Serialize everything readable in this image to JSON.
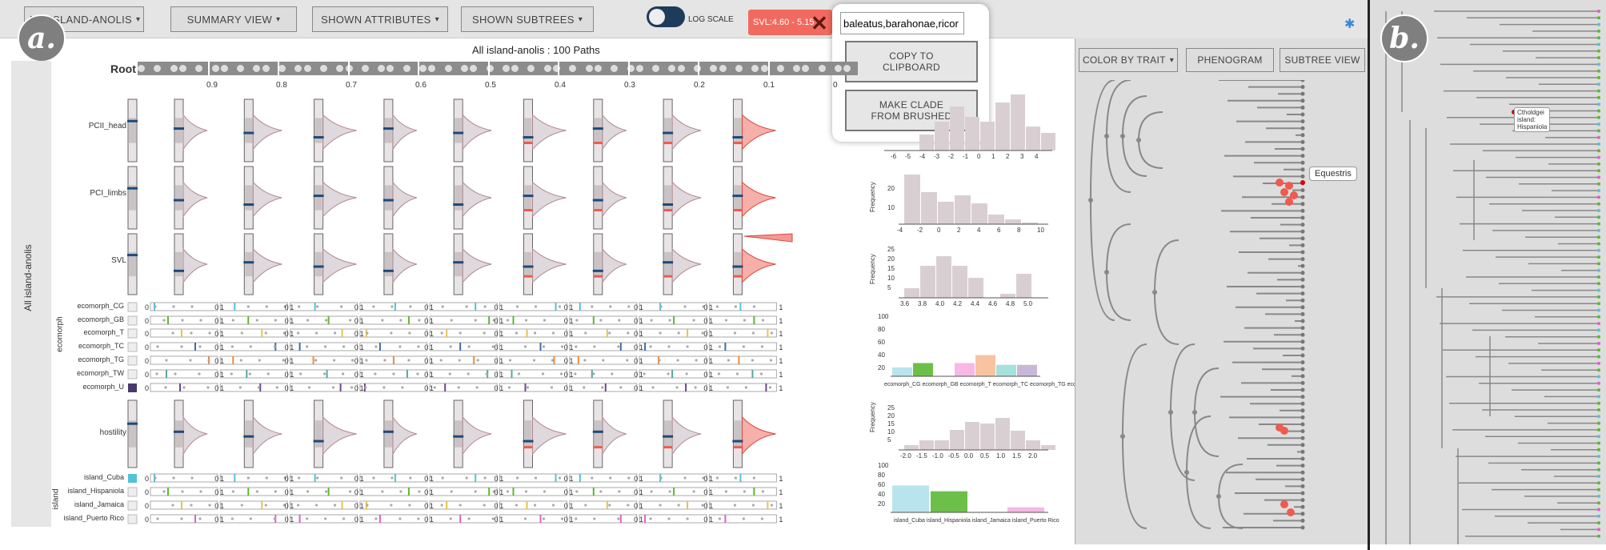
{
  "toolbar": {
    "dataset_label": "ALL ISLAND-ANOLIS",
    "summary_label": "SUMMARY VIEW",
    "attributes_label": "SHOWN ATTRIBUTES",
    "subtrees_label": "SHOWN SUBTREES",
    "log_scale_label": "LOG SCALE",
    "range_chip": "SVL:4.60 - 5.15"
  },
  "popup": {
    "input_value": "baleatus,barahonae,ricor",
    "copy_label_1": "COPY TO",
    "copy_label_2": "CLIPBOARD",
    "clade_label_1": "MAKE CLADE",
    "clade_label_2": "FROM BRUSHED"
  },
  "panel_a": {
    "badge": "a.",
    "title": "All island-anolis : 100 Paths",
    "root_label": "Root",
    "side_label": "All island-anolis",
    "ticks": [
      "0.9",
      "0.8",
      "0.7",
      "0.6",
      "0.5",
      "0.4",
      "0.3",
      "0.2",
      "0.1",
      "0"
    ],
    "continuous_rows": [
      "PCII_head",
      "PCI_limbs",
      "SVL"
    ],
    "ecomorph_group": "ecomorph",
    "ecomorph_rows": [
      "ecomorph_CG",
      "ecomorph_GB",
      "ecomorph_T",
      "ecomorph_TC",
      "ecomorph_TG",
      "ecomorph_TW",
      "ecomorph_U"
    ],
    "hostility_row": "hostility",
    "island_group": "island",
    "island_rows": [
      "island_Cuba",
      "island_Hispaniola",
      "island_Jamaica",
      "island_Puerto Rico"
    ],
    "zero": "0",
    "one": "1"
  },
  "histograms": {
    "freq_label": "Frequency",
    "h1_ticks": [
      "-6",
      "-5",
      "-4",
      "-3",
      "-2",
      "-1",
      "0",
      "1",
      "2",
      "3",
      "4"
    ],
    "h2_ticks": [
      "-4",
      "-2",
      "0",
      "2",
      "4",
      "6",
      "8",
      "10"
    ],
    "h2_yticks": [
      "10",
      "20"
    ],
    "h3_ticks": [
      "3.6",
      "3.8",
      "4.0",
      "4.2",
      "4.4",
      "4.6",
      "4.8",
      "5.0"
    ],
    "h3_yticks": [
      "5",
      "10",
      "15",
      "20",
      "25"
    ],
    "h4_cats": [
      "ecomorph_CG",
      "ecomorph_GB",
      "ecomorph_T",
      "ecomorph_TC",
      "ecomorph_TG",
      "ecomorph_TW",
      "ecomorph_U"
    ],
    "h4_yticks": [
      "20",
      "40",
      "60",
      "80",
      "100"
    ],
    "h5_ticks": [
      "-2.0",
      "-1.5",
      "-1.0",
      "-0.5",
      "0.0",
      "0.5",
      "1.0",
      "1.5",
      "2.0"
    ],
    "h5_yticks": [
      "5",
      "10",
      "15",
      "20",
      "25"
    ],
    "h6_cats": [
      "island_Cuba",
      "island_Hispaniola",
      "island_Jamaica",
      "island_Puerto Rico"
    ],
    "h6_yticks": [
      "20",
      "40",
      "60",
      "80",
      "100"
    ]
  },
  "tree_panel": {
    "color_label": "COLOR BY TRAIT",
    "phenogram_label": "PHENOGRAM",
    "subtree_label": "SUBTREE VIEW",
    "tooltip": "Equestris"
  },
  "panel_b": {
    "badge": "b.",
    "tooltip_1": "Ctholdgei",
    "tooltip_2": "island:",
    "tooltip_3": "Hispaniola"
  },
  "colors": {
    "cuba": "#4fc3d9",
    "hispaniola": "#5cb82e",
    "jamaica": "#e8c24a",
    "puerto_rico": "#e05fc8",
    "brush": "#ee5b4f",
    "mean": "#1d4a7a"
  }
}
